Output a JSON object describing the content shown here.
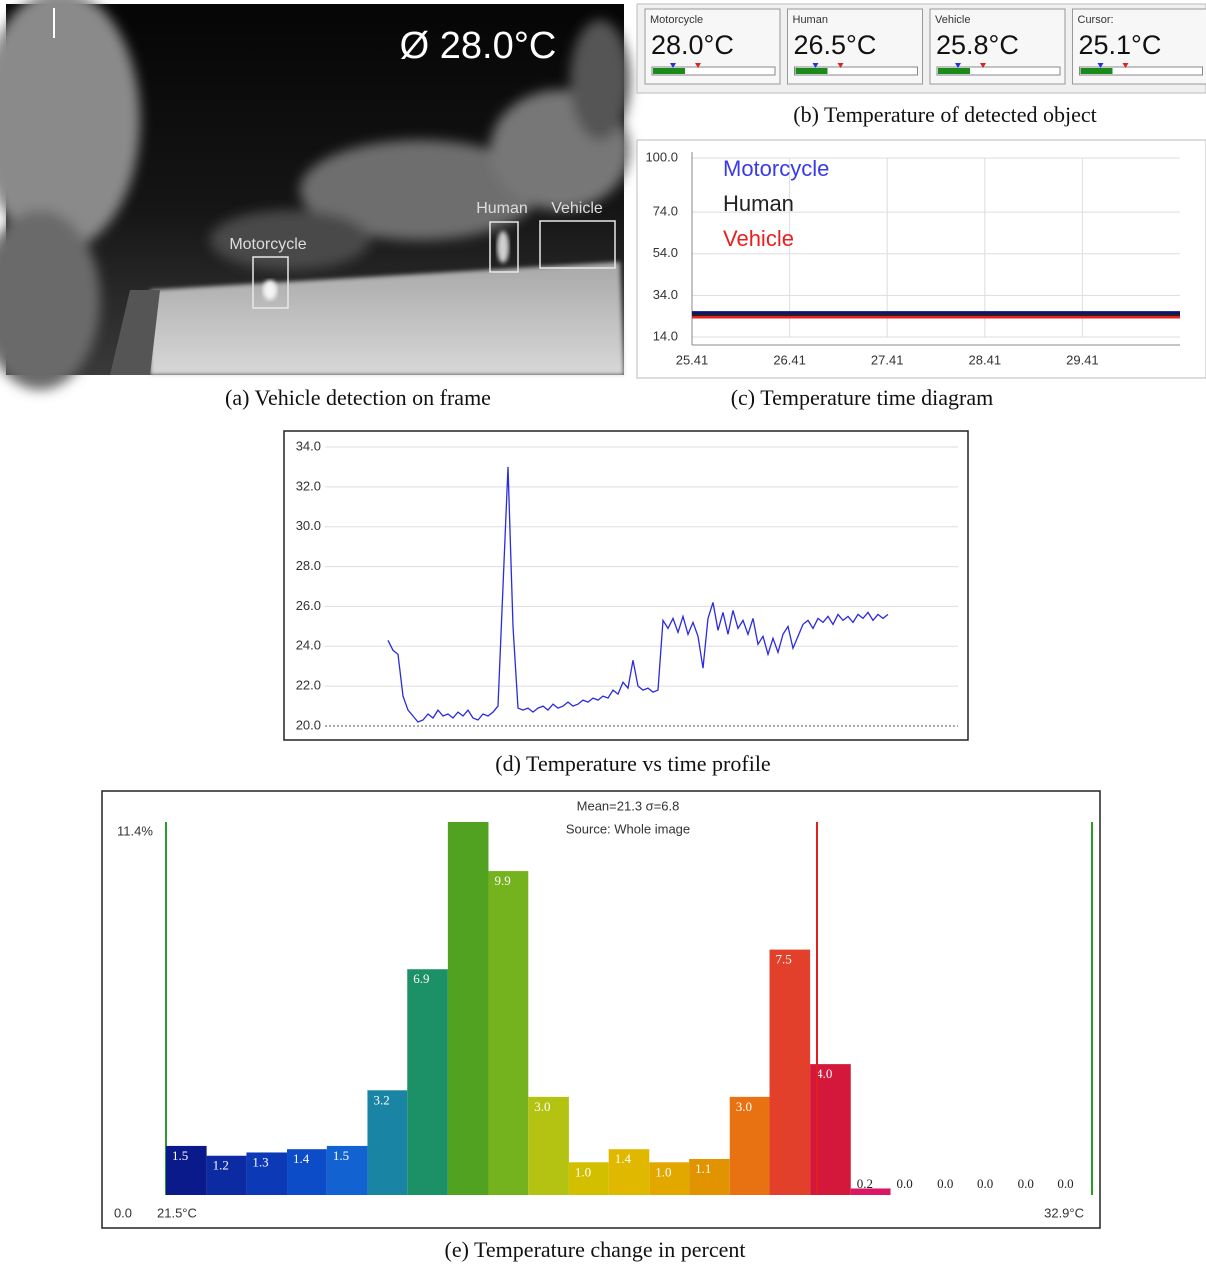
{
  "frame": {
    "overlay": "Ø 28.0°C",
    "detections": [
      {
        "label": "Motorcycle"
      },
      {
        "label": "Human"
      },
      {
        "label": "Vehicle"
      }
    ],
    "caption": "(a)  Vehicle detection on frame"
  },
  "widgets": {
    "items": [
      {
        "label": "Motorcycle",
        "value": "28.0°C"
      },
      {
        "label": "Human",
        "value": "26.5°C"
      },
      {
        "label": "Vehicle",
        "value": "25.8°C"
      },
      {
        "label": "Cursor:",
        "value": "25.1°C"
      }
    ],
    "caption": "(b) Temperature of detected object"
  },
  "chart_data": [
    {
      "type": "line",
      "caption": "(c) Temperature time diagram",
      "x": [
        25.41,
        30.41
      ],
      "xlim": [
        25.41,
        30.41
      ],
      "xticks": [
        25.41,
        26.41,
        27.41,
        28.41,
        29.41
      ],
      "ylim": [
        14,
        100
      ],
      "yticks": [
        {
          "value": 100,
          "label": "100.0"
        },
        {
          "value": 74,
          "label": "74.0"
        },
        {
          "value": 54,
          "label": "54.0"
        },
        {
          "value": 34,
          "label": "34.0"
        },
        {
          "value": 14,
          "label": "14.0"
        }
      ],
      "grid": true,
      "legend": "top-left",
      "series": [
        {
          "name": "Motorcycle",
          "color": "#3a3ae8",
          "values": [
            25.0,
            25.0
          ]
        },
        {
          "name": "Human",
          "color": "#222222",
          "values": [
            24.5,
            24.5
          ]
        },
        {
          "name": "Vehicle",
          "color": "#e82020",
          "values": [
            23.5,
            23.5
          ]
        }
      ]
    },
    {
      "type": "line",
      "caption": "(d) Temperature vs time profile",
      "xlim": [
        7.4,
        134
      ],
      "ylim": [
        20,
        34
      ],
      "yticks": [
        {
          "value": 20,
          "label": "20.0"
        },
        {
          "value": 22,
          "label": "22.0"
        },
        {
          "value": 24,
          "label": "24.0"
        },
        {
          "value": 26,
          "label": "26.0"
        },
        {
          "value": 28,
          "label": "28.0"
        },
        {
          "value": 30,
          "label": "30.0"
        },
        {
          "value": 32,
          "label": "32.0"
        },
        {
          "value": 34,
          "label": "34.0"
        }
      ],
      "grid": true,
      "x": [
        20,
        21,
        22,
        23,
        24,
        25,
        26,
        27,
        28,
        29,
        30,
        31,
        32,
        33,
        34,
        35,
        36,
        37,
        38,
        39,
        40,
        41,
        42,
        43,
        44,
        45,
        46,
        47,
        48,
        49,
        50,
        51,
        52,
        53,
        54,
        55,
        56,
        57,
        58,
        59,
        60,
        61,
        62,
        63,
        64,
        65,
        66,
        67,
        68,
        69,
        70,
        71,
        72,
        73,
        74,
        75,
        76,
        77,
        78,
        79,
        80,
        81,
        82,
        83,
        84,
        85,
        86,
        87,
        88,
        89,
        90,
        91,
        92,
        93,
        94,
        95,
        96,
        97,
        98,
        99,
        100,
        101,
        102,
        103,
        104,
        105,
        106,
        107,
        108,
        109,
        110,
        111,
        112,
        113,
        114,
        115,
        116,
        117,
        118,
        119,
        120
      ],
      "series": [
        {
          "color": "#2a2ae0",
          "values": [
            24.3,
            23.8,
            23.6,
            21.5,
            20.8,
            20.5,
            20.2,
            20.3,
            20.6,
            20.4,
            20.8,
            20.5,
            20.6,
            20.4,
            20.7,
            20.5,
            20.8,
            20.4,
            20.3,
            20.6,
            20.5,
            20.7,
            21.0,
            27.0,
            33.0,
            25.0,
            20.9,
            20.8,
            20.9,
            20.7,
            20.9,
            21.0,
            20.8,
            21.1,
            20.9,
            21.0,
            21.2,
            21.0,
            21.1,
            21.3,
            21.2,
            21.4,
            21.3,
            21.5,
            21.4,
            21.8,
            21.6,
            22.2,
            21.9,
            23.3,
            22.0,
            21.8,
            21.9,
            21.7,
            21.8,
            25.3,
            24.9,
            25.4,
            24.7,
            25.5,
            24.6,
            25.2,
            24.5,
            22.9,
            25.4,
            26.2,
            24.8,
            25.7,
            24.6,
            25.8,
            24.9,
            25.3,
            24.6,
            25.4,
            24.1,
            24.5,
            23.6,
            24.4,
            23.7,
            24.6,
            25.0,
            23.9,
            24.5,
            25.1,
            25.3,
            24.9,
            25.4,
            25.2,
            25.5,
            25.1,
            25.6,
            25.3,
            25.5,
            25.2,
            25.6,
            25.4,
            25.7,
            25.3,
            25.6,
            25.4,
            25.6
          ]
        }
      ]
    },
    {
      "type": "histogram",
      "caption": "(e) Temperature change in percent",
      "annotations": [
        "Mean=21.3 σ=6.8",
        "Source:  Whole image"
      ],
      "bins": [
        21.5,
        22.0,
        22.49,
        22.99,
        23.48,
        23.98,
        24.47,
        24.97,
        25.47,
        25.96,
        26.46,
        26.95,
        27.45,
        27.94,
        28.44,
        28.93,
        29.43,
        29.93,
        30.42,
        30.92,
        31.41,
        31.91,
        32.4,
        32.9
      ],
      "values": [
        1.5,
        1.2,
        1.3,
        1.4,
        1.5,
        3.2,
        6.9,
        11.4,
        9.9,
        3.0,
        1.0,
        1.4,
        1.0,
        1.1,
        3.0,
        7.5,
        4.0,
        0.2,
        0.0,
        0.0,
        0.0,
        0.0,
        0.0
      ],
      "value_labels": [
        "1.5",
        "1.2",
        "1.3",
        "1.4",
        "1.5",
        "3.2",
        "6.9",
        null,
        "9.9",
        "3.0",
        "1.0",
        "1.4",
        "1.0",
        "1.1",
        "3.0",
        "7.5",
        "4.0",
        "0.2",
        "0.0",
        "0.0",
        "0.0",
        "0.0",
        "0.0"
      ],
      "colors": [
        "#0a1a8a",
        "#0c2aa2",
        "#0c3ab6",
        "#0c4cc8",
        "#1262d2",
        "#1a84a4",
        "#1c9066",
        "#52a222",
        "#74b21e",
        "#b4c212",
        "#d2c000",
        "#e0b800",
        "#e2a800",
        "#e29400",
        "#e87212",
        "#e2402a",
        "#d4183c",
        "#d81864",
        "#999999",
        "#999999",
        "#999999",
        "#999999",
        "#999999"
      ],
      "xlim": [
        21.5,
        32.9
      ],
      "xticks": [
        {
          "value": 21.5,
          "label": "21.5°C"
        },
        {
          "value": 32.9,
          "label": "32.9°C"
        }
      ],
      "ylim": [
        0,
        11.4
      ],
      "yticks": [
        {
          "value": 0,
          "label": "0.0"
        },
        {
          "value": 11.4,
          "label": "11.4%"
        }
      ]
    }
  ]
}
